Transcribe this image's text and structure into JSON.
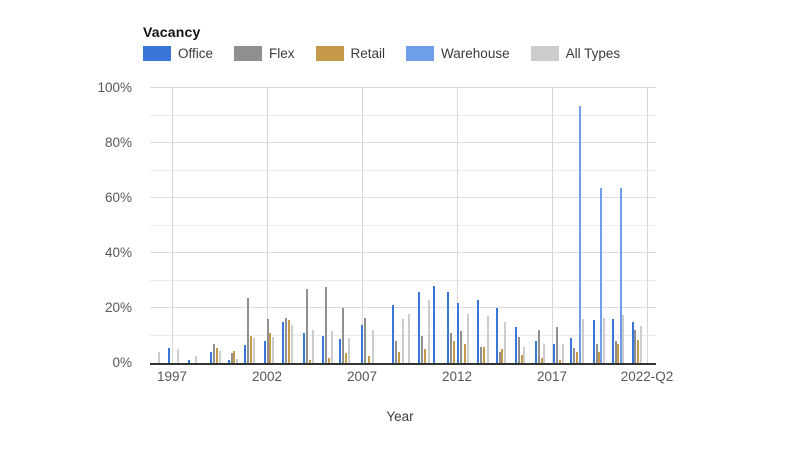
{
  "chart_data": {
    "type": "bar",
    "title": "Vacancy",
    "xlabel": "Year",
    "ylabel": "",
    "unit": "%",
    "ylim": [
      0,
      100
    ],
    "y_minor_step": 10,
    "grid": true,
    "legend_position": "top",
    "x_range": [
      1996.25,
      2022.5
    ],
    "y_ticks": [
      {
        "value": 100,
        "label": "100%"
      },
      {
        "value": 80,
        "label": "80%"
      },
      {
        "value": 60,
        "label": "60%"
      },
      {
        "value": 40,
        "label": "40%"
      },
      {
        "value": 20,
        "label": "20%"
      },
      {
        "value": 0,
        "label": "0%"
      }
    ],
    "x_ticks": [
      {
        "year": 1997,
        "label": "1997"
      },
      {
        "year": 2002,
        "label": "2002"
      },
      {
        "year": 2007,
        "label": "2007"
      },
      {
        "year": 2012,
        "label": "2012"
      },
      {
        "year": 2017,
        "label": "2017"
      },
      {
        "year": 2022,
        "label": "2022-Q2"
      }
    ],
    "series": [
      {
        "id": "office",
        "name": "Office",
        "color": "#3a75d9"
      },
      {
        "id": "flex",
        "name": "Flex",
        "color": "#8f8f8f"
      },
      {
        "id": "retail",
        "name": "Retail",
        "color": "#c59b4b"
      },
      {
        "id": "warehouse",
        "name": "Warehouse",
        "color": "#6f9ee9"
      },
      {
        "id": "all_types",
        "name": "All Types",
        "color": "#cccccc"
      }
    ],
    "bars": [
      {
        "x": 1996.26,
        "series": "all_types",
        "value": 4
      },
      {
        "x": 1996.79,
        "series": "office",
        "value": 5.5
      },
      {
        "x": 1997.26,
        "series": "all_types",
        "value": 5
      },
      {
        "x": 1997.84,
        "series": "office",
        "value": 1
      },
      {
        "x": 1998.21,
        "series": "all_types",
        "value": 2.5
      },
      {
        "x": 1999.0,
        "series": "office",
        "value": 4
      },
      {
        "x": 1999.16,
        "series": "flex",
        "value": 7
      },
      {
        "x": 1999.32,
        "series": "retail",
        "value": 5.5
      },
      {
        "x": 1999.47,
        "series": "all_types",
        "value": 4.5
      },
      {
        "x": 1999.95,
        "series": "office",
        "value": 1
      },
      {
        "x": 2000.11,
        "series": "flex",
        "value": 3.5
      },
      {
        "x": 2000.21,
        "series": "retail",
        "value": 4.5
      },
      {
        "x": 2000.37,
        "series": "all_types",
        "value": 1.5
      },
      {
        "x": 2000.79,
        "series": "office",
        "value": 6.5
      },
      {
        "x": 2000.95,
        "series": "flex",
        "value": 23.5
      },
      {
        "x": 2001.11,
        "series": "retail",
        "value": 10
      },
      {
        "x": 2001.26,
        "series": "all_types",
        "value": 9
      },
      {
        "x": 2001.84,
        "series": "office",
        "value": 8
      },
      {
        "x": 2002.0,
        "series": "flex",
        "value": 16
      },
      {
        "x": 2002.11,
        "series": "retail",
        "value": 11
      },
      {
        "x": 2002.26,
        "series": "all_types",
        "value": 9.5
      },
      {
        "x": 2002.79,
        "series": "office",
        "value": 15
      },
      {
        "x": 2002.95,
        "series": "flex",
        "value": 16.5
      },
      {
        "x": 2003.11,
        "series": "retail",
        "value": 15.5
      },
      {
        "x": 2003.26,
        "series": "all_types",
        "value": 14
      },
      {
        "x": 2003.89,
        "series": "office",
        "value": 11
      },
      {
        "x": 2004.05,
        "series": "flex",
        "value": 27
      },
      {
        "x": 2004.21,
        "series": "retail",
        "value": 1
      },
      {
        "x": 2004.37,
        "series": "all_types",
        "value": 12
      },
      {
        "x": 2004.89,
        "series": "office",
        "value": 10
      },
      {
        "x": 2005.05,
        "series": "flex",
        "value": 27.5
      },
      {
        "x": 2005.21,
        "series": "retail",
        "value": 2
      },
      {
        "x": 2005.37,
        "series": "all_types",
        "value": 11.5
      },
      {
        "x": 2005.79,
        "series": "office",
        "value": 8.7
      },
      {
        "x": 2005.95,
        "series": "flex",
        "value": 20
      },
      {
        "x": 2006.11,
        "series": "retail",
        "value": 3.5
      },
      {
        "x": 2006.26,
        "series": "all_types",
        "value": 9
      },
      {
        "x": 2006.95,
        "series": "office",
        "value": 14
      },
      {
        "x": 2007.11,
        "series": "flex",
        "value": 16.5
      },
      {
        "x": 2007.32,
        "series": "retail",
        "value": 2.5
      },
      {
        "x": 2007.53,
        "series": "all_types",
        "value": 12
      },
      {
        "x": 2008.58,
        "series": "office",
        "value": 21
      },
      {
        "x": 2008.74,
        "series": "flex",
        "value": 8
      },
      {
        "x": 2008.89,
        "series": "retail",
        "value": 4
      },
      {
        "x": 2009.11,
        "series": "all_types",
        "value": 16
      },
      {
        "x": 2009.42,
        "series": "all_types",
        "value": 18
      },
      {
        "x": 2009.95,
        "series": "office",
        "value": 26
      },
      {
        "x": 2010.11,
        "series": "flex",
        "value": 10
      },
      {
        "x": 2010.26,
        "series": "retail",
        "value": 5
      },
      {
        "x": 2010.47,
        "series": "all_types",
        "value": 23
      },
      {
        "x": 2010.74,
        "series": "office",
        "value": 28
      },
      {
        "x": 2011.47,
        "series": "office",
        "value": 26
      },
      {
        "x": 2011.63,
        "series": "flex",
        "value": 11
      },
      {
        "x": 2011.79,
        "series": "retail",
        "value": 8
      },
      {
        "x": 2012.0,
        "series": "office",
        "value": 22
      },
      {
        "x": 2012.16,
        "series": "flex",
        "value": 11.5
      },
      {
        "x": 2012.37,
        "series": "retail",
        "value": 7
      },
      {
        "x": 2012.53,
        "series": "all_types",
        "value": 18
      },
      {
        "x": 2013.05,
        "series": "office",
        "value": 23
      },
      {
        "x": 2013.21,
        "series": "flex",
        "value": 6
      },
      {
        "x": 2013.37,
        "series": "retail",
        "value": 6
      },
      {
        "x": 2013.58,
        "series": "all_types",
        "value": 17
      },
      {
        "x": 2014.05,
        "series": "office",
        "value": 20
      },
      {
        "x": 2014.21,
        "series": "flex",
        "value": 4
      },
      {
        "x": 2014.32,
        "series": "retail",
        "value": 5
      },
      {
        "x": 2014.47,
        "series": "all_types",
        "value": 15
      },
      {
        "x": 2015.05,
        "series": "office",
        "value": 13
      },
      {
        "x": 2015.21,
        "series": "flex",
        "value": 9.5
      },
      {
        "x": 2015.37,
        "series": "retail",
        "value": 3
      },
      {
        "x": 2015.47,
        "series": "all_types",
        "value": 6
      },
      {
        "x": 2016.11,
        "series": "office",
        "value": 8
      },
      {
        "x": 2016.26,
        "series": "flex",
        "value": 12
      },
      {
        "x": 2016.42,
        "series": "retail",
        "value": 1.7
      },
      {
        "x": 2016.53,
        "series": "all_types",
        "value": 7
      },
      {
        "x": 2017.05,
        "series": "office",
        "value": 7
      },
      {
        "x": 2017.21,
        "series": "flex",
        "value": 13
      },
      {
        "x": 2017.37,
        "series": "retail",
        "value": 1
      },
      {
        "x": 2017.53,
        "series": "all_types",
        "value": 7
      },
      {
        "x": 2017.95,
        "series": "office",
        "value": 9
      },
      {
        "x": 2018.11,
        "series": "flex",
        "value": 5.5
      },
      {
        "x": 2018.26,
        "series": "retail",
        "value": 4
      },
      {
        "x": 2018.42,
        "series": "warehouse",
        "value": 93.5
      },
      {
        "x": 2018.58,
        "series": "all_types",
        "value": 16
      },
      {
        "x": 2019.16,
        "series": "office",
        "value": 15.5
      },
      {
        "x": 2019.32,
        "series": "flex",
        "value": 7
      },
      {
        "x": 2019.42,
        "series": "retail",
        "value": 4
      },
      {
        "x": 2019.53,
        "series": "warehouse",
        "value": 63.5
      },
      {
        "x": 2019.68,
        "series": "all_types",
        "value": 16.5
      },
      {
        "x": 2020.16,
        "series": "office",
        "value": 16
      },
      {
        "x": 2020.32,
        "series": "flex",
        "value": 8
      },
      {
        "x": 2020.42,
        "series": "retail",
        "value": 7
      },
      {
        "x": 2020.58,
        "series": "warehouse",
        "value": 63.5
      },
      {
        "x": 2020.68,
        "series": "all_types",
        "value": 17.5
      },
      {
        "x": 2021.21,
        "series": "office",
        "value": 15
      },
      {
        "x": 2021.32,
        "series": "flex",
        "value": 12
      },
      {
        "x": 2021.47,
        "series": "retail",
        "value": 8.5
      },
      {
        "x": 2021.63,
        "series": "all_types",
        "value": 13.5
      }
    ]
  },
  "colors": {
    "axis_line": "#333333",
    "grid_major": "#dcdcdc",
    "grid_minor": "#ececec",
    "tick_text": "#57585a"
  }
}
